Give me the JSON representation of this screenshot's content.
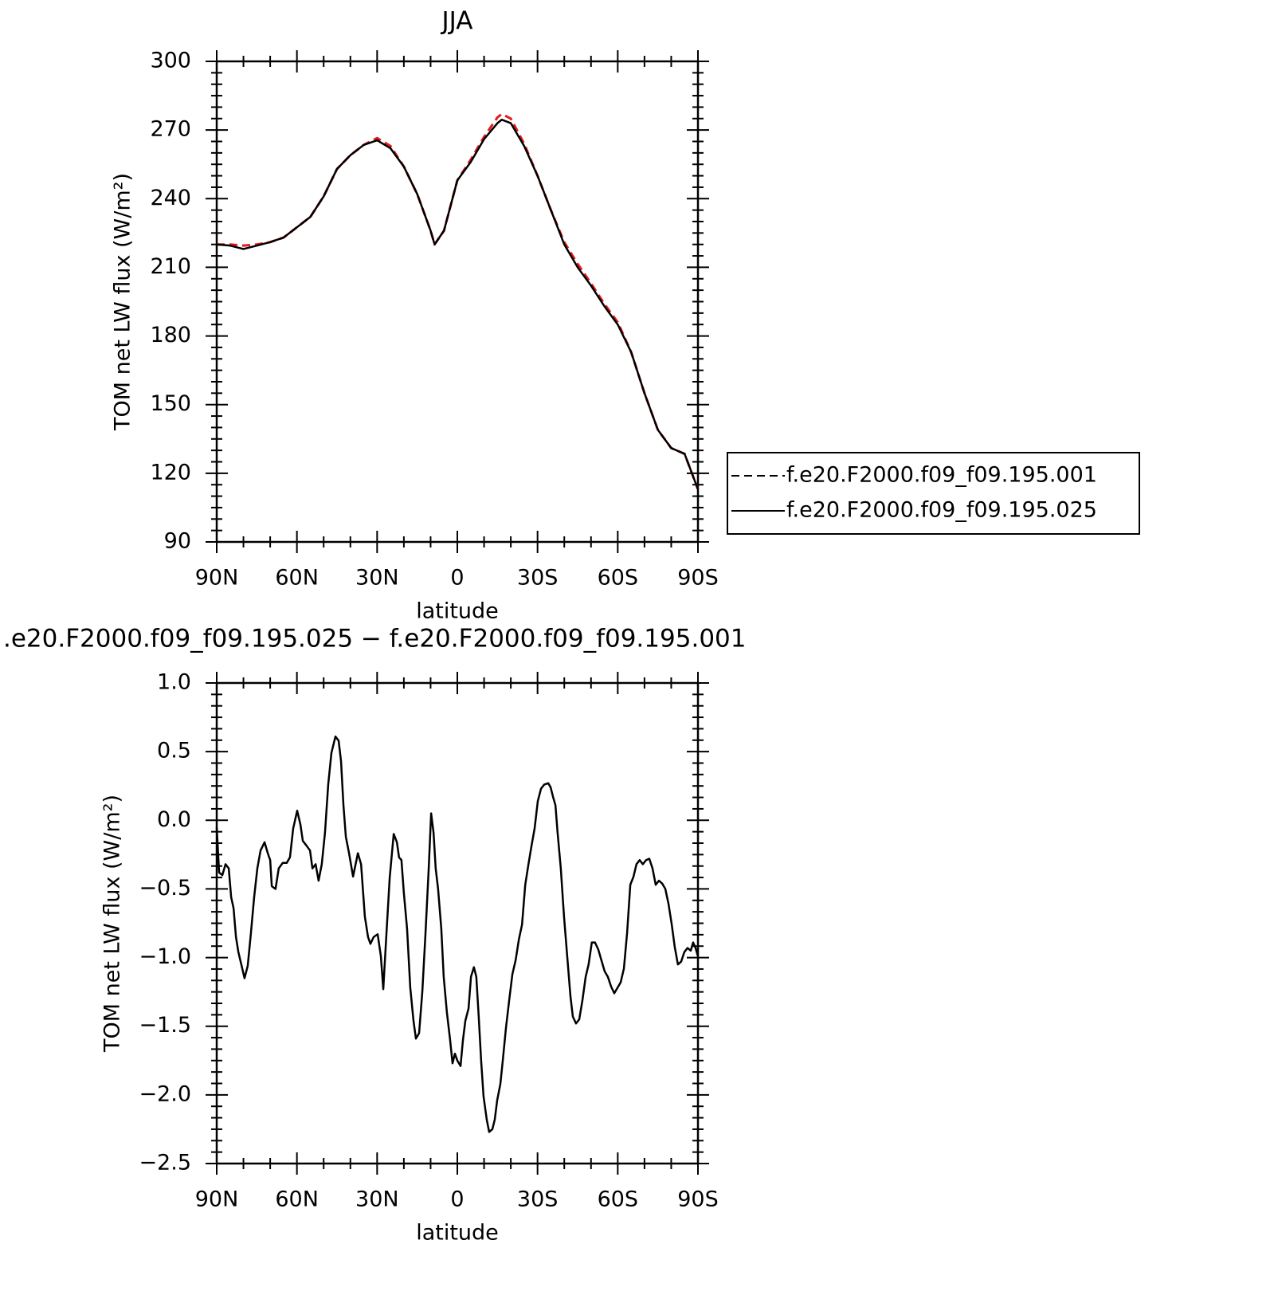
{
  "chart_data": [
    {
      "type": "line",
      "title": "JJA",
      "xlabel": "latitude",
      "ylabel": "TOM net LW flux (W/m²)",
      "xlim": [
        90,
        -90
      ],
      "xticks": [
        {
          "value": 90,
          "label": "90N"
        },
        {
          "value": 60,
          "label": "60N"
        },
        {
          "value": 30,
          "label": "30N"
        },
        0,
        {
          "value": -30,
          "label": "30S"
        },
        {
          "value": -60,
          "label": "60S"
        },
        {
          "value": -90,
          "label": "90S"
        }
      ],
      "ylim": [
        90,
        300
      ],
      "yticks": [
        90,
        120,
        150,
        180,
        210,
        240,
        270,
        300
      ],
      "legend": "right",
      "x": [
        90,
        85,
        80,
        75,
        70,
        65,
        60,
        55,
        50,
        45,
        40,
        35,
        30,
        25,
        20,
        15,
        10,
        8.5,
        5,
        0,
        -5,
        -10,
        -15,
        -16.6,
        -20,
        -25,
        -30,
        -35,
        -40,
        -45,
        -50,
        -55,
        -60,
        -65,
        -70,
        -75,
        -80,
        -85,
        -90
      ],
      "series": [
        {
          "name": "f.e20.F2000.f09_f09.195.001",
          "color": "#e41a1c",
          "dashed": true,
          "values": [
            220,
            220,
            219.5,
            220,
            221,
            223,
            227.5,
            232,
            241,
            253,
            259,
            263.5,
            266.5,
            263,
            254,
            242,
            226,
            220,
            226,
            248,
            257,
            267,
            275.5,
            277,
            275,
            264,
            250,
            235,
            221,
            211.5,
            203,
            194,
            186,
            173,
            155,
            139,
            131,
            128.5,
            113
          ]
        },
        {
          "name": "f.e20.F2000.f09_f09.195.025",
          "color": "#000000",
          "dashed": false,
          "values": [
            220,
            219.5,
            218,
            219.5,
            221,
            223,
            227.5,
            232,
            241,
            253,
            259,
            263.5,
            265.5,
            262,
            254,
            242,
            226,
            220,
            226,
            248,
            256,
            266,
            273,
            274.5,
            273,
            263,
            250,
            235,
            220,
            210,
            202,
            193,
            185,
            173,
            155,
            139,
            131,
            128.5,
            113
          ]
        }
      ]
    },
    {
      "type": "line",
      "title": ".e20.F2000.f09_f09.195.025 − f.e20.F2000.f09_f09.195.001",
      "xlabel": "latitude",
      "ylabel": "TOM net LW flux (W/m²)",
      "xlim": [
        90,
        -90
      ],
      "xticks": [
        {
          "value": 90,
          "label": "90N"
        },
        {
          "value": 60,
          "label": "60N"
        },
        {
          "value": 30,
          "label": "30N"
        },
        0,
        {
          "value": -30,
          "label": "30S"
        },
        {
          "value": -60,
          "label": "60S"
        },
        {
          "value": -90,
          "label": "90S"
        }
      ],
      "ylim": [
        -2.5,
        1.0
      ],
      "yticks": [
        {
          "value": -2.5,
          "label": "−2.5"
        },
        {
          "value": -2.0,
          "label": "−2.0"
        },
        {
          "value": -1.5,
          "label": "−1.5"
        },
        {
          "value": -1.0,
          "label": "−1.0"
        },
        {
          "value": -0.5,
          "label": "−0.5"
        },
        {
          "value": 0,
          "label": "0.0"
        },
        {
          "value": 0.5,
          "label": "0.5"
        },
        {
          "value": 1.0,
          "label": "1.0"
        }
      ],
      "x": [
        90,
        89.1,
        87.9,
        86.7,
        85.5,
        84.6,
        83.7,
        82.8,
        81.9,
        80.8,
        79.6,
        78.4,
        77.2,
        76,
        74.8,
        73.6,
        72.1,
        70.9,
        70,
        69.4,
        68,
        66.8,
        65.3,
        63.8,
        62.6,
        61.4,
        59.9,
        58.7,
        57.8,
        56.6,
        55.1,
        54.2,
        53,
        51.9,
        50.7,
        49.5,
        48.3,
        47.1,
        45.6,
        44.4,
        43.5,
        42.6,
        41.7,
        40.5,
        39,
        37.2,
        36,
        34.6,
        33.4,
        32.5,
        31.3,
        29.8,
        28.6,
        27.7,
        26.5,
        25.3,
        23.8,
        22.6,
        21.8,
        20.9,
        20,
        18.8,
        17.6,
        16.4,
        15.5,
        14.3,
        13.1,
        11.9,
        10.7,
        9.8,
        8.9,
        8.1,
        7.2,
        6,
        5.1,
        3.9,
        2.7,
        1.8,
        0.9,
        0,
        -1.2,
        -2.1,
        -3,
        -4.2,
        -5.1,
        -6.2,
        -7.1,
        -8,
        -8.9,
        -9.8,
        -11,
        -11.9,
        -13.1,
        -14,
        -14.9,
        -16.1,
        -17,
        -18.2,
        -19.4,
        -20.6,
        -21.8,
        -23,
        -24.2,
        -25.4,
        -26.6,
        -27.8,
        -28.9,
        -30.1,
        -31.3,
        -32.5,
        -34,
        -34.9,
        -35.8,
        -36.7,
        -37.5,
        -38.7,
        -39.9,
        -41.1,
        -42.3,
        -43.2,
        -44.4,
        -45.6,
        -46.8,
        -48,
        -49.1,
        -50.3,
        -51.5,
        -52.7,
        -53.9,
        -55.1,
        -56.3,
        -57.5,
        -58.7,
        -59.9,
        -61.1,
        -62.3,
        -63.5,
        -64.7,
        -65.9,
        -67,
        -68.2,
        -69.4,
        -70.6,
        -71.8,
        -73,
        -74.2,
        -75.4,
        -76.6,
        -77.8,
        -79,
        -80.2,
        -81.3,
        -82.5,
        -83.7,
        -84.9,
        -86.1,
        -87.3,
        -88.2,
        -89.1,
        -90
      ],
      "series": [
        {
          "color": "#000000",
          "dashed": false,
          "values": [
            -0.05,
            -0.38,
            -0.4,
            -0.32,
            -0.35,
            -0.56,
            -0.64,
            -0.85,
            -0.96,
            -1.05,
            -1.15,
            -1.06,
            -0.82,
            -0.56,
            -0.35,
            -0.22,
            -0.16,
            -0.24,
            -0.29,
            -0.48,
            -0.5,
            -0.35,
            -0.31,
            -0.31,
            -0.27,
            -0.06,
            0.07,
            -0.03,
            -0.15,
            -0.18,
            -0.22,
            -0.35,
            -0.32,
            -0.44,
            -0.32,
            -0.09,
            0.26,
            0.49,
            0.61,
            0.58,
            0.43,
            0.11,
            -0.12,
            -0.24,
            -0.41,
            -0.24,
            -0.32,
            -0.7,
            -0.85,
            -0.9,
            -0.85,
            -0.83,
            -0.99,
            -1.23,
            -0.82,
            -0.42,
            -0.1,
            -0.16,
            -0.27,
            -0.29,
            -0.53,
            -0.79,
            -1.22,
            -1.46,
            -1.59,
            -1.55,
            -1.25,
            -0.82,
            -0.35,
            0.05,
            -0.09,
            -0.35,
            -0.5,
            -0.79,
            -1.14,
            -1.4,
            -1.6,
            -1.77,
            -1.7,
            -1.75,
            -1.79,
            -1.6,
            -1.46,
            -1.37,
            -1.14,
            -1.07,
            -1.14,
            -1.43,
            -1.75,
            -2.01,
            -2.18,
            -2.27,
            -2.25,
            -2.18,
            -2.04,
            -1.92,
            -1.75,
            -1.51,
            -1.31,
            -1.12,
            -1.02,
            -0.87,
            -0.76,
            -0.47,
            -0.32,
            -0.18,
            -0.06,
            0.14,
            0.23,
            0.26,
            0.27,
            0.24,
            0.17,
            0.11,
            -0.09,
            -0.35,
            -0.7,
            -0.99,
            -1.28,
            -1.43,
            -1.48,
            -1.45,
            -1.31,
            -1.14,
            -1.05,
            -0.89,
            -0.89,
            -0.94,
            -1.02,
            -1.1,
            -1.14,
            -1.21,
            -1.26,
            -1.22,
            -1.18,
            -1.08,
            -0.82,
            -0.47,
            -0.41,
            -0.32,
            -0.29,
            -0.32,
            -0.29,
            -0.28,
            -0.35,
            -0.47,
            -0.44,
            -0.46,
            -0.5,
            -0.61,
            -0.76,
            -0.92,
            -1.05,
            -1.03,
            -0.96,
            -0.93,
            -0.95,
            -0.89,
            -0.93,
            -0.99
          ]
        }
      ]
    }
  ]
}
